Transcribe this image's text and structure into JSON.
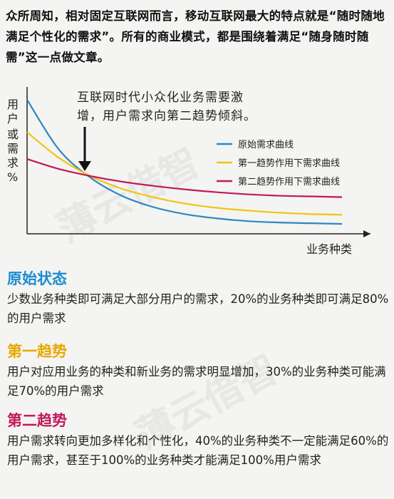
{
  "intro": {
    "text": "众所周知，相对固定互联网而言，移动互联网最大的特点就是“随时随地满足个性化的需求”。所有的商业模式，都是围绕着满足“随身随时随需”这一点做文章。"
  },
  "watermark": {
    "text": "薄云借智"
  },
  "chart_data": {
    "type": "line",
    "title": "",
    "ylabel": "用户或需求%",
    "xlabel": "业务种类",
    "annotation": "互联网时代小众化业务需要激增，用户需求向第二趋势倾斜。",
    "annotation_lines": [
      "互联网时代小众化业务需要激",
      "增，用户需求向第二趋势倾斜。"
    ],
    "legend_position": "right",
    "x": [
      0,
      1,
      2,
      3,
      4,
      5,
      6,
      7,
      8,
      9,
      10
    ],
    "series": [
      {
        "name": "原始需求曲线",
        "color": "#2e86c1",
        "values": [
          95,
          60,
          40,
          27,
          19,
          14,
          11,
          9,
          8,
          7.5,
          7
        ]
      },
      {
        "name": "第一趋势作用下需求曲线",
        "color": "#f1c40f",
        "values": [
          72,
          54,
          41,
          32,
          26,
          21.5,
          18.5,
          16.5,
          15,
          14,
          13.5
        ]
      },
      {
        "name": "第二趋势作用下需求曲线",
        "color": "#c2185b",
        "values": [
          53,
          46,
          41,
          37,
          34,
          31.5,
          29.5,
          28,
          27,
          26.5,
          26
        ]
      }
    ]
  },
  "sections": [
    {
      "title": "原始状态",
      "color": "#1a8ccf",
      "body": "少数业务种类即可满足大部分用户的需求，20%的业务种类即可满足80%的用户需求"
    },
    {
      "title": "第一趋势",
      "color": "#e6a800",
      "body": "用户对应用业务的种类和新业务的需求明显增加，30%的业务种类可能满足70%的用户需求"
    },
    {
      "title": "第二趋势",
      "color": "#c2185b",
      "body": "用户需求转向更加多样化和个性化，40%的业务种类不一定能满足60%的用户需求，甚至于100%的业务种类才能满足100%用户需求"
    }
  ]
}
